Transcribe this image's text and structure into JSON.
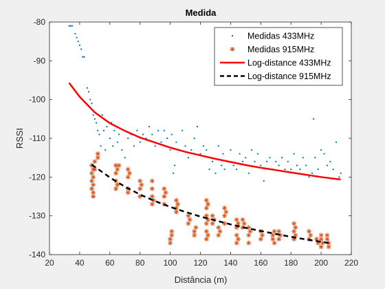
{
  "chart_data": {
    "type": "scatter",
    "title": "Medida",
    "xlabel": "Distância (m)",
    "ylabel": "RSSI",
    "xlim": [
      20,
      220
    ],
    "ylim": [
      -140,
      -80
    ],
    "xticks": [
      20,
      40,
      60,
      80,
      100,
      120,
      140,
      160,
      180,
      200,
      220
    ],
    "yticks": [
      -80,
      -90,
      -100,
      -110,
      -120,
      -130,
      -140
    ],
    "grid": false,
    "legend_position": "top-right",
    "series": [
      {
        "name": "Medidas 433MHz",
        "kind": "scatter",
        "marker": "dot",
        "color": "#0072bd",
        "points": [
          [
            33,
            -81
          ],
          [
            34,
            -81
          ],
          [
            35,
            -81
          ],
          [
            37,
            -83
          ],
          [
            38,
            -84
          ],
          [
            39,
            -85
          ],
          [
            40,
            -86
          ],
          [
            41,
            -87
          ],
          [
            42,
            -89
          ],
          [
            43,
            -89
          ],
          [
            45,
            -97
          ],
          [
            46,
            -98
          ],
          [
            47,
            -100
          ],
          [
            48,
            -101
          ],
          [
            49,
            -104
          ],
          [
            50,
            -105
          ],
          [
            51,
            -106
          ],
          [
            52,
            -108
          ],
          [
            53,
            -109
          ],
          [
            54,
            -112
          ],
          [
            55,
            -104
          ],
          [
            56,
            -108
          ],
          [
            57,
            -113
          ],
          [
            58,
            -107
          ],
          [
            60,
            -110
          ],
          [
            61,
            -106
          ],
          [
            62,
            -112
          ],
          [
            63,
            -108
          ],
          [
            65,
            -111
          ],
          [
            66,
            -109
          ],
          [
            68,
            -113
          ],
          [
            70,
            -115
          ],
          [
            72,
            -110
          ],
          [
            74,
            -109
          ],
          [
            76,
            -112
          ],
          [
            78,
            -108
          ],
          [
            80,
            -111
          ],
          [
            82,
            -109
          ],
          [
            84,
            -110
          ],
          [
            86,
            -107
          ],
          [
            88,
            -109
          ],
          [
            90,
            -112
          ],
          [
            92,
            -108
          ],
          [
            94,
            -111
          ],
          [
            96,
            -108
          ],
          [
            98,
            -110
          ],
          [
            100,
            -113
          ],
          [
            101,
            -109
          ],
          [
            102,
            -119
          ],
          [
            103,
            -117
          ],
          [
            104,
            -111
          ],
          [
            106,
            -113
          ],
          [
            108,
            -108
          ],
          [
            110,
            -112
          ],
          [
            112,
            -115
          ],
          [
            114,
            -113
          ],
          [
            116,
            -110
          ],
          [
            118,
            -107
          ],
          [
            120,
            -114
          ],
          [
            122,
            -112
          ],
          [
            124,
            -113
          ],
          [
            126,
            -118
          ],
          [
            128,
            -116
          ],
          [
            130,
            -119
          ],
          [
            132,
            -112
          ],
          [
            134,
            -117
          ],
          [
            135,
            -114
          ],
          [
            136,
            -118
          ],
          [
            138,
            -116
          ],
          [
            140,
            -113
          ],
          [
            142,
            -117
          ],
          [
            144,
            -118
          ],
          [
            146,
            -114
          ],
          [
            148,
            -116
          ],
          [
            150,
            -115
          ],
          [
            152,
            -119
          ],
          [
            154,
            -113
          ],
          [
            156,
            -116
          ],
          [
            158,
            -114
          ],
          [
            160,
            -117
          ],
          [
            162,
            -121
          ],
          [
            164,
            -116
          ],
          [
            166,
            -115
          ],
          [
            168,
            -118
          ],
          [
            170,
            -116
          ],
          [
            172,
            -117
          ],
          [
            174,
            -115
          ],
          [
            176,
            -118
          ],
          [
            178,
            -116
          ],
          [
            180,
            -118
          ],
          [
            182,
            -114
          ],
          [
            184,
            -117
          ],
          [
            186,
            -118
          ],
          [
            188,
            -115
          ],
          [
            190,
            -117
          ],
          [
            192,
            -120
          ],
          [
            194,
            -119
          ],
          [
            195,
            -105
          ],
          [
            196,
            -115
          ],
          [
            198,
            -118
          ],
          [
            200,
            -113
          ],
          [
            202,
            -114
          ],
          [
            204,
            -117
          ],
          [
            206,
            -116
          ],
          [
            208,
            -118
          ],
          [
            210,
            -111
          ],
          [
            212,
            -120
          ],
          [
            213,
            -119
          ]
        ]
      },
      {
        "name": "Medidas 915MHz",
        "kind": "scatter",
        "marker": "asterisk",
        "color": "#d95319",
        "points": [
          [
            48,
            -117
          ],
          [
            48,
            -119
          ],
          [
            48,
            -121
          ],
          [
            48,
            -123
          ],
          [
            49,
            -118
          ],
          [
            49,
            -120
          ],
          [
            49,
            -122
          ],
          [
            49,
            -124
          ],
          [
            49,
            -125
          ],
          [
            50,
            -116
          ],
          [
            50,
            -118
          ],
          [
            52,
            -115
          ],
          [
            52,
            -114
          ],
          [
            64,
            -117
          ],
          [
            64,
            -119
          ],
          [
            64,
            -121
          ],
          [
            64,
            -123
          ],
          [
            65,
            -118
          ],
          [
            65,
            -122
          ],
          [
            66,
            -117
          ],
          [
            72,
            -118
          ],
          [
            72,
            -120
          ],
          [
            72,
            -123
          ],
          [
            72,
            -124
          ],
          [
            73,
            -119
          ],
          [
            80,
            -121
          ],
          [
            80,
            -123
          ],
          [
            80,
            -125
          ],
          [
            81,
            -122
          ],
          [
            88,
            -121
          ],
          [
            88,
            -123
          ],
          [
            88,
            -125
          ],
          [
            88,
            -127
          ],
          [
            89,
            -126
          ],
          [
            96,
            -123
          ],
          [
            96,
            -125
          ],
          [
            96,
            -127
          ],
          [
            97,
            -124
          ],
          [
            100,
            -136
          ],
          [
            100,
            -137
          ],
          [
            101,
            -134
          ],
          [
            101,
            -135
          ],
          [
            104,
            -126
          ],
          [
            104,
            -128
          ],
          [
            104,
            -129
          ],
          [
            105,
            -127
          ],
          [
            112,
            -130
          ],
          [
            112,
            -132
          ],
          [
            113,
            -131
          ],
          [
            116,
            -134
          ],
          [
            116,
            -135
          ],
          [
            117,
            -133
          ],
          [
            124,
            -126
          ],
          [
            124,
            -128
          ],
          [
            124,
            -130
          ],
          [
            124,
            -132
          ],
          [
            124,
            -134
          ],
          [
            124,
            -136
          ],
          [
            125,
            -127
          ],
          [
            125,
            -131
          ],
          [
            125,
            -135
          ],
          [
            128,
            -130
          ],
          [
            128,
            -132
          ],
          [
            129,
            -131
          ],
          [
            132,
            -133
          ],
          [
            132,
            -135
          ],
          [
            133,
            -134
          ],
          [
            136,
            -128
          ],
          [
            136,
            -130
          ],
          [
            136,
            -132
          ],
          [
            137,
            -129
          ],
          [
            144,
            -131
          ],
          [
            144,
            -133
          ],
          [
            144,
            -135
          ],
          [
            144,
            -137
          ],
          [
            145,
            -132
          ],
          [
            145,
            -136
          ],
          [
            148,
            -131
          ],
          [
            148,
            -133
          ],
          [
            149,
            -132
          ],
          [
            152,
            -133
          ],
          [
            152,
            -135
          ],
          [
            152,
            -137
          ],
          [
            153,
            -134
          ],
          [
            160,
            -134
          ],
          [
            160,
            -136
          ],
          [
            161,
            -135
          ],
          [
            168,
            -135
          ],
          [
            168,
            -136
          ],
          [
            169,
            -134
          ],
          [
            169,
            -137
          ],
          [
            172,
            -134
          ],
          [
            172,
            -136
          ],
          [
            173,
            -135
          ],
          [
            182,
            -132
          ],
          [
            182,
            -134
          ],
          [
            182,
            -136
          ],
          [
            183,
            -133
          ],
          [
            183,
            -135
          ],
          [
            192,
            -134
          ],
          [
            192,
            -136
          ],
          [
            193,
            -135
          ],
          [
            197,
            -136
          ],
          [
            198,
            -137
          ],
          [
            200,
            -135
          ],
          [
            200,
            -136
          ],
          [
            200,
            -138
          ],
          [
            201,
            -137
          ],
          [
            204,
            -135
          ],
          [
            204,
            -136
          ],
          [
            205,
            -137
          ],
          [
            205,
            -138
          ]
        ]
      },
      {
        "name": "Log-distance 433MHz",
        "kind": "line",
        "style": "solid",
        "color": "#ff0000",
        "points": [
          [
            33,
            -95.7
          ],
          [
            40,
            -99.3
          ],
          [
            50,
            -103.3
          ],
          [
            60,
            -106.1
          ],
          [
            70,
            -108.1
          ],
          [
            80,
            -109.8
          ],
          [
            90,
            -111.1
          ],
          [
            100,
            -112.4
          ],
          [
            110,
            -113.5
          ],
          [
            120,
            -114.4
          ],
          [
            130,
            -115.3
          ],
          [
            140,
            -116.1
          ],
          [
            150,
            -116.9
          ],
          [
            160,
            -117.6
          ],
          [
            170,
            -118.2
          ],
          [
            180,
            -118.8
          ],
          [
            190,
            -119.4
          ],
          [
            200,
            -120.0
          ],
          [
            210,
            -120.5
          ],
          [
            213,
            -120.6
          ]
        ]
      },
      {
        "name": "Log-distance 915MHz",
        "kind": "line",
        "style": "dashed",
        "color": "#000000",
        "points": [
          [
            48,
            -116.8
          ],
          [
            60,
            -120.1
          ],
          [
            70,
            -122.5
          ],
          [
            80,
            -124.5
          ],
          [
            90,
            -126.2
          ],
          [
            100,
            -127.7
          ],
          [
            110,
            -129.0
          ],
          [
            120,
            -130.2
          ],
          [
            130,
            -131.2
          ],
          [
            140,
            -132.2
          ],
          [
            150,
            -133.1
          ],
          [
            160,
            -133.9
          ],
          [
            170,
            -134.7
          ],
          [
            180,
            -135.4
          ],
          [
            190,
            -136.1
          ],
          [
            200,
            -136.7
          ],
          [
            205,
            -137.0
          ]
        ]
      }
    ]
  }
}
